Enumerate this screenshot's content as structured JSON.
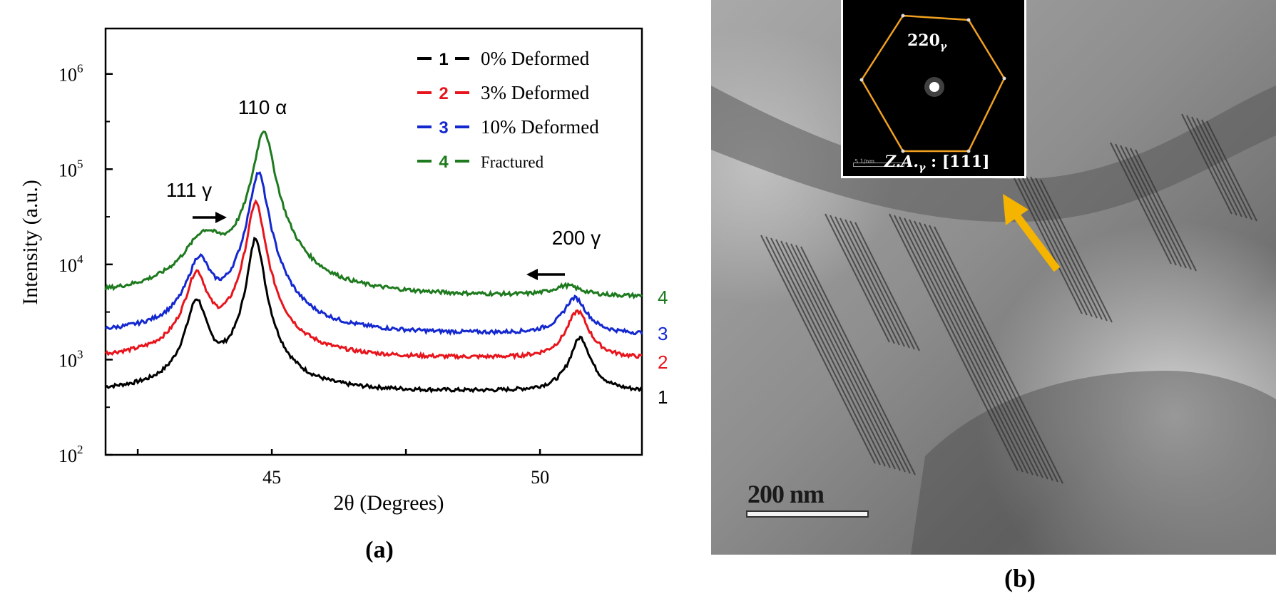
{
  "chart_data": {
    "type": "line",
    "xlabel": "2θ (Degrees)",
    "ylabel": "Intensity (a.u.)",
    "xlim": [
      41.9,
      51.9
    ],
    "ylim": [
      100,
      3000000
    ],
    "yscale": "log",
    "x_ticks": [
      45,
      50
    ],
    "y_ticks": [
      {
        "base": "10",
        "exp": "2",
        "value": 100
      },
      {
        "base": "10",
        "exp": "3",
        "value": 1000
      },
      {
        "base": "10",
        "exp": "4",
        "value": 10000
      },
      {
        "base": "10",
        "exp": "5",
        "value": 100000
      },
      {
        "base": "10",
        "exp": "6",
        "value": 1000000
      }
    ],
    "legend_position": "top-right",
    "series": [
      {
        "id": "1",
        "name": "0% Deformed",
        "color": "#000000",
        "baseline": 450,
        "peaks": [
          {
            "x": 43.6,
            "height": 3700,
            "width": 0.17
          },
          {
            "x": 44.7,
            "height": 18500,
            "width": 0.12
          },
          {
            "x": 50.75,
            "height": 1250,
            "width": 0.18
          }
        ]
      },
      {
        "id": "2",
        "name": "3% Deformed",
        "color": "#e8141c",
        "baseline": 1000,
        "peaks": [
          {
            "x": 43.6,
            "height": 7000,
            "width": 0.18
          },
          {
            "x": 44.7,
            "height": 44000,
            "width": 0.13
          },
          {
            "x": 50.7,
            "height": 2200,
            "width": 0.2
          }
        ]
      },
      {
        "id": "3",
        "name": "10% Deformed",
        "color": "#1428d0",
        "baseline": 1800,
        "peaks": [
          {
            "x": 43.65,
            "height": 9200,
            "width": 0.2
          },
          {
            "x": 44.75,
            "height": 90000,
            "width": 0.14
          },
          {
            "x": 50.65,
            "height": 2600,
            "width": 0.22
          }
        ]
      },
      {
        "id": "4",
        "name": "Fractured",
        "color": "#1e7a1e",
        "baseline": 4500,
        "peaks": [
          {
            "x": 43.75,
            "height": 14000,
            "width": 0.35
          },
          {
            "x": 44.85,
            "height": 250000,
            "width": 0.15
          },
          {
            "x": 50.5,
            "height": 1300,
            "width": 0.3
          }
        ]
      }
    ],
    "annotations": [
      {
        "id": "111g",
        "text": "111 γ",
        "x": 43.6
      },
      {
        "id": "110a",
        "text": "110 α",
        "x": 44.7
      },
      {
        "id": "200g",
        "text": "200 γ",
        "x": 50.7
      }
    ],
    "curve_end_labels": [
      "4",
      "3",
      "2",
      "1"
    ]
  },
  "panel_a_label": "(a)",
  "panel_b": {
    "label": "(b)",
    "scale_bar_text": "200 nm",
    "inset": {
      "spot_label": "220",
      "spot_subscript": "γ",
      "zone_axis_prefix": "Z.A.",
      "zone_axis_subscript": "γ",
      "zone_axis_index": "[111]",
      "scale_text": "5 1/nm"
    },
    "colors": {
      "arrow": "#f5b400",
      "hexagon": "#f0a020"
    }
  }
}
